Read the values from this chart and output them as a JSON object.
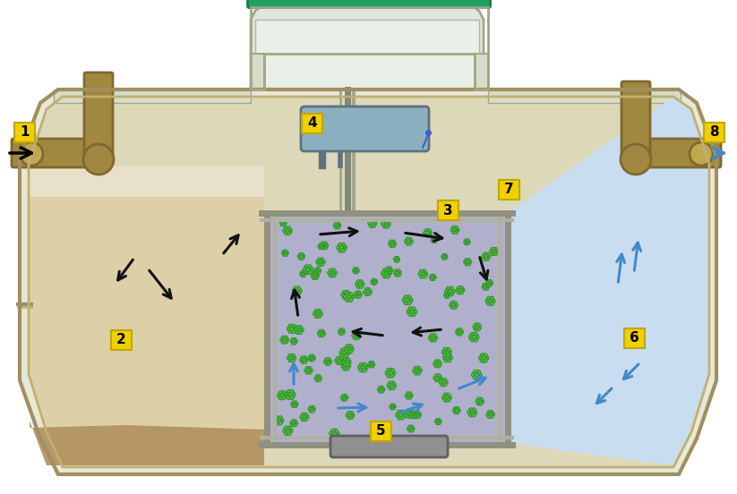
{
  "fig_width": 8.23,
  "fig_height": 5.52,
  "dpi": 100,
  "tank_outer_color": "#e8e8d8",
  "tank_outer_edge": "#a09060",
  "tank_inner_edge": "#c0b070",
  "chamber1_water": "#ddd0a8",
  "sediment_color": "#b09060",
  "bioreactor_color": "#b0b0cc",
  "clarifier_color": "#c8ddf0",
  "pipe_color": "#a08840",
  "pipe_edge": "#806830",
  "label_bg": "#f0d000",
  "label_border": "#c0a800",
  "green_bacteria": "#4ab840",
  "green_bacteria_edge": "#2a8820",
  "inner_frame_color": "#909080",
  "inner_frame_light": "#b0b0a0",
  "top_chamber_color": "#e8f0e8",
  "top_chamber_edge": "#a0a888",
  "top_lid_color": "#20a060",
  "top_lid_edge": "#108040",
  "blower_color": "#8ab0c0",
  "blower_edge": "#607080",
  "diffuser_color": "#909090",
  "diffuser_edge": "#606060",
  "arrow_black": "#111111",
  "arrow_blue": "#4488cc"
}
